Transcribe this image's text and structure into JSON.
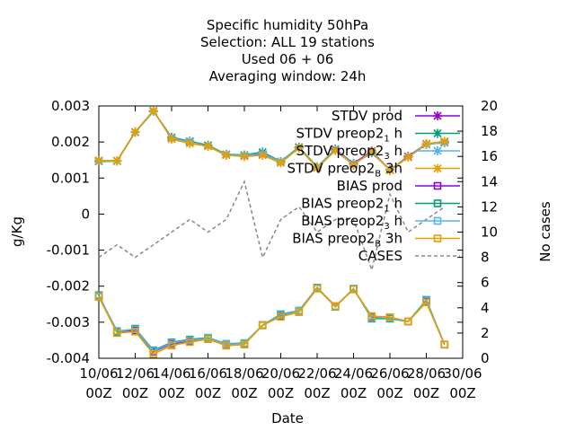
{
  "chart_data": {
    "type": "line",
    "title_lines": [
      "Specific humidity 50hPa",
      "Selection: ALL      19 stations",
      "Used  06 + 06",
      "Averaging window: 24h"
    ],
    "xlabel": "Date",
    "ylabel": "g/Kg",
    "y2label": "No cases",
    "ylim": [
      -0.004,
      0.003
    ],
    "y2lim": [
      0,
      20
    ],
    "yticks": [
      {
        "v": 0.003,
        "label": "0.003"
      },
      {
        "v": 0.002,
        "label": "0.002"
      },
      {
        "v": 0.001,
        "label": "0.001"
      },
      {
        "v": 0,
        "label": "0"
      },
      {
        "v": -0.001,
        "label": "-0.001"
      },
      {
        "v": -0.002,
        "label": "-0.002"
      },
      {
        "v": -0.003,
        "label": "-0.003"
      },
      {
        "v": -0.004,
        "label": "-0.004"
      }
    ],
    "y2ticks": [
      {
        "v": 0,
        "label": "0"
      },
      {
        "v": 2,
        "label": "2"
      },
      {
        "v": 4,
        "label": "4"
      },
      {
        "v": 6,
        "label": "6"
      },
      {
        "v": 8,
        "label": "8"
      },
      {
        "v": 10,
        "label": "10"
      },
      {
        "v": 12,
        "label": "12"
      },
      {
        "v": 14,
        "label": "14"
      },
      {
        "v": 16,
        "label": "16"
      },
      {
        "v": 18,
        "label": "18"
      },
      {
        "v": 20,
        "label": "20"
      }
    ],
    "xlim": [
      10,
      30
    ],
    "xticks": [
      {
        "v": 10,
        "l1": "10/06",
        "l2": "00Z"
      },
      {
        "v": 12,
        "l1": "12/06",
        "l2": "00Z"
      },
      {
        "v": 14,
        "l1": "14/06",
        "l2": "00Z"
      },
      {
        "v": 16,
        "l1": "16/06",
        "l2": "00Z"
      },
      {
        "v": 18,
        "l1": "18/06",
        "l2": "00Z"
      },
      {
        "v": 20,
        "l1": "20/06",
        "l2": "00Z"
      },
      {
        "v": 22,
        "l1": "22/06",
        "l2": "00Z"
      },
      {
        "v": 24,
        "l1": "24/06",
        "l2": "00Z"
      },
      {
        "v": 26,
        "l1": "26/06",
        "l2": "00Z"
      },
      {
        "v": 28,
        "l1": "28/06",
        "l2": "00Z"
      },
      {
        "v": 30,
        "l1": "30/06",
        "l2": "00Z"
      }
    ],
    "x": [
      10,
      11,
      12,
      13,
      14,
      15,
      16,
      17,
      18,
      19,
      20,
      21,
      22,
      23,
      24,
      25,
      26,
      27,
      28,
      29
    ],
    "series": [
      {
        "legend": "STDV prod",
        "sub": "",
        "tail": "",
        "kind": "stdv",
        "marker": "star",
        "color": "#9400d3",
        "axis": "y",
        "values": [
          0.00148,
          0.00148,
          0.00228,
          0.00286,
          0.00212,
          0.002,
          0.0019,
          0.00165,
          0.00162,
          0.00165,
          0.00145,
          0.00185,
          0.0013,
          0.0018,
          0.0014,
          0.00175,
          0.00122,
          0.0016,
          0.00195,
          0.002
        ]
      },
      {
        "legend": "STDV preop2",
        "sub": "1",
        "tail": "h",
        "kind": "stdv",
        "marker": "star",
        "color": "#009e73",
        "axis": "y",
        "values": [
          0.00146,
          0.00147,
          0.00227,
          0.00285,
          0.00213,
          0.00202,
          0.00191,
          0.00166,
          0.00164,
          0.00172,
          0.00146,
          0.00186,
          0.00131,
          0.00179,
          0.00139,
          0.0017,
          0.00123,
          0.00158,
          0.00194,
          0.00198
        ]
      },
      {
        "legend": "STDV preop2",
        "sub": "3",
        "tail": "h",
        "kind": "stdv",
        "marker": "star",
        "color": "#56b4e9",
        "axis": "y",
        "values": [
          0.00147,
          0.00148,
          0.00227,
          0.00285,
          0.00211,
          0.002,
          0.00189,
          0.00165,
          0.00163,
          0.00168,
          0.00145,
          0.00184,
          0.0013,
          0.00178,
          0.00138,
          0.00172,
          0.00122,
          0.00158,
          0.00193,
          0.00199
        ]
      },
      {
        "legend": "STDV preop2",
        "sub": "B",
        "tail": "3h",
        "kind": "stdv",
        "marker": "star",
        "color": "#e69f00",
        "axis": "y",
        "values": [
          0.00149,
          0.00148,
          0.00228,
          0.00287,
          0.00208,
          0.00196,
          0.00188,
          0.00163,
          0.0016,
          0.00163,
          0.00142,
          0.00183,
          0.00128,
          0.00176,
          0.00136,
          0.00174,
          0.00121,
          0.00158,
          0.00195,
          0.00202
        ]
      },
      {
        "legend": "BIAS prod",
        "sub": "",
        "tail": "",
        "kind": "bias",
        "marker": "square",
        "color": "#9400d3",
        "axis": "y",
        "values": [
          -0.00228,
          -0.00325,
          -0.00323,
          -0.00382,
          -0.0036,
          -0.00352,
          -0.00345,
          -0.00362,
          -0.0036,
          -0.00308,
          -0.00282,
          -0.0027,
          -0.00205,
          -0.00255,
          -0.00208,
          -0.00285,
          -0.00287,
          -0.00298,
          -0.00242,
          -0.00362
        ]
      },
      {
        "legend": "BIAS preop2",
        "sub": "1",
        "tail": "h",
        "kind": "bias",
        "marker": "square",
        "color": "#009e73",
        "axis": "y",
        "values": [
          -0.00225,
          -0.00327,
          -0.00318,
          -0.00378,
          -0.00356,
          -0.00348,
          -0.00343,
          -0.0036,
          -0.00358,
          -0.00308,
          -0.00278,
          -0.00268,
          -0.00204,
          -0.00257,
          -0.00207,
          -0.0029,
          -0.0029,
          -0.00298,
          -0.00238,
          -0.00362
        ]
      },
      {
        "legend": "BIAS preop2",
        "sub": "3",
        "tail": "h",
        "kind": "bias",
        "marker": "square",
        "color": "#56b4e9",
        "axis": "y",
        "values": [
          -0.00227,
          -0.00324,
          -0.0032,
          -0.0038,
          -0.00358,
          -0.0035,
          -0.00344,
          -0.00361,
          -0.00359,
          -0.00309,
          -0.0028,
          -0.00269,
          -0.00205,
          -0.00256,
          -0.00208,
          -0.00288,
          -0.00288,
          -0.00298,
          -0.0024,
          -0.00362
        ]
      },
      {
        "legend": "BIAS preop2",
        "sub": "B",
        "tail": "3h",
        "kind": "bias",
        "marker": "square",
        "color": "#e69f00",
        "axis": "y",
        "values": [
          -0.0023,
          -0.0033,
          -0.00326,
          -0.00388,
          -0.00365,
          -0.00355,
          -0.00347,
          -0.00365,
          -0.00362,
          -0.00308,
          -0.00285,
          -0.00272,
          -0.00207,
          -0.00255,
          -0.00209,
          -0.00283,
          -0.00286,
          -0.00298,
          -0.00245,
          -0.00362
        ]
      },
      {
        "legend": "CASES",
        "sub": "",
        "tail": "",
        "kind": "cases",
        "marker": "none",
        "color": "#888888",
        "axis": "y2",
        "values": [
          8,
          9,
          8,
          9,
          10,
          11,
          10,
          11,
          14,
          8,
          11,
          12,
          10,
          11,
          11,
          7,
          13,
          10,
          11,
          12
        ]
      }
    ],
    "grid": false,
    "legend_position": "top-right"
  }
}
